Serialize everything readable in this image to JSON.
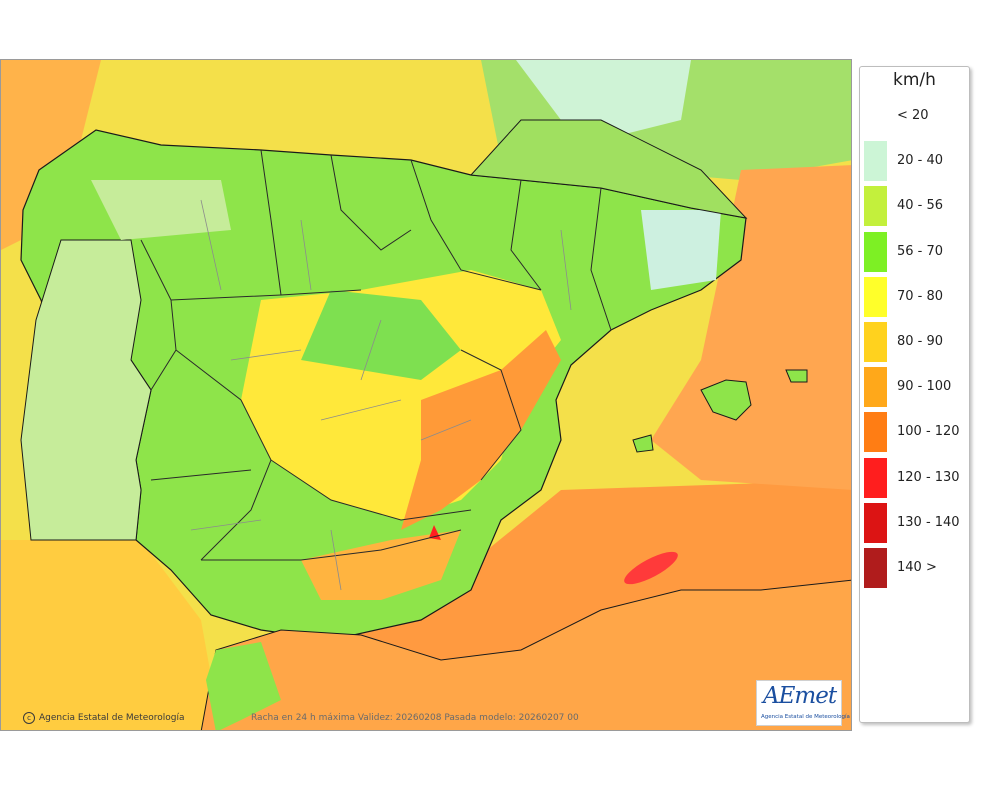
{
  "legend": {
    "unit": "km/h",
    "classes": [
      {
        "label": "< 20",
        "color": "#ffffff"
      },
      {
        "label": "20 - 40",
        "color": "#ccf5d6"
      },
      {
        "label": "40 - 56",
        "color": "#c3f03c"
      },
      {
        "label": "56 - 70",
        "color": "#7df024"
      },
      {
        "label": "70 - 80",
        "color": "#ffff2a"
      },
      {
        "label": "80 - 90",
        "color": "#ffd21e"
      },
      {
        "label": "90 - 100",
        "color": "#ffa81a"
      },
      {
        "label": "100 - 120",
        "color": "#ff7d14"
      },
      {
        "label": "120 - 130",
        "color": "#ff1e1e"
      },
      {
        "label": "130 - 140",
        "color": "#dc1414"
      },
      {
        "label": "140 >",
        "color": "#b01c1c"
      }
    ]
  },
  "map": {
    "credit": "Agencia Estatal de Meteorología",
    "caption": "Racha en 24 h máxima  Validez: 20260208 Pasada modelo: 20260207 00",
    "logo_mark": "AEmet",
    "logo_text": "Agencia Estatal de Meteorología"
  }
}
